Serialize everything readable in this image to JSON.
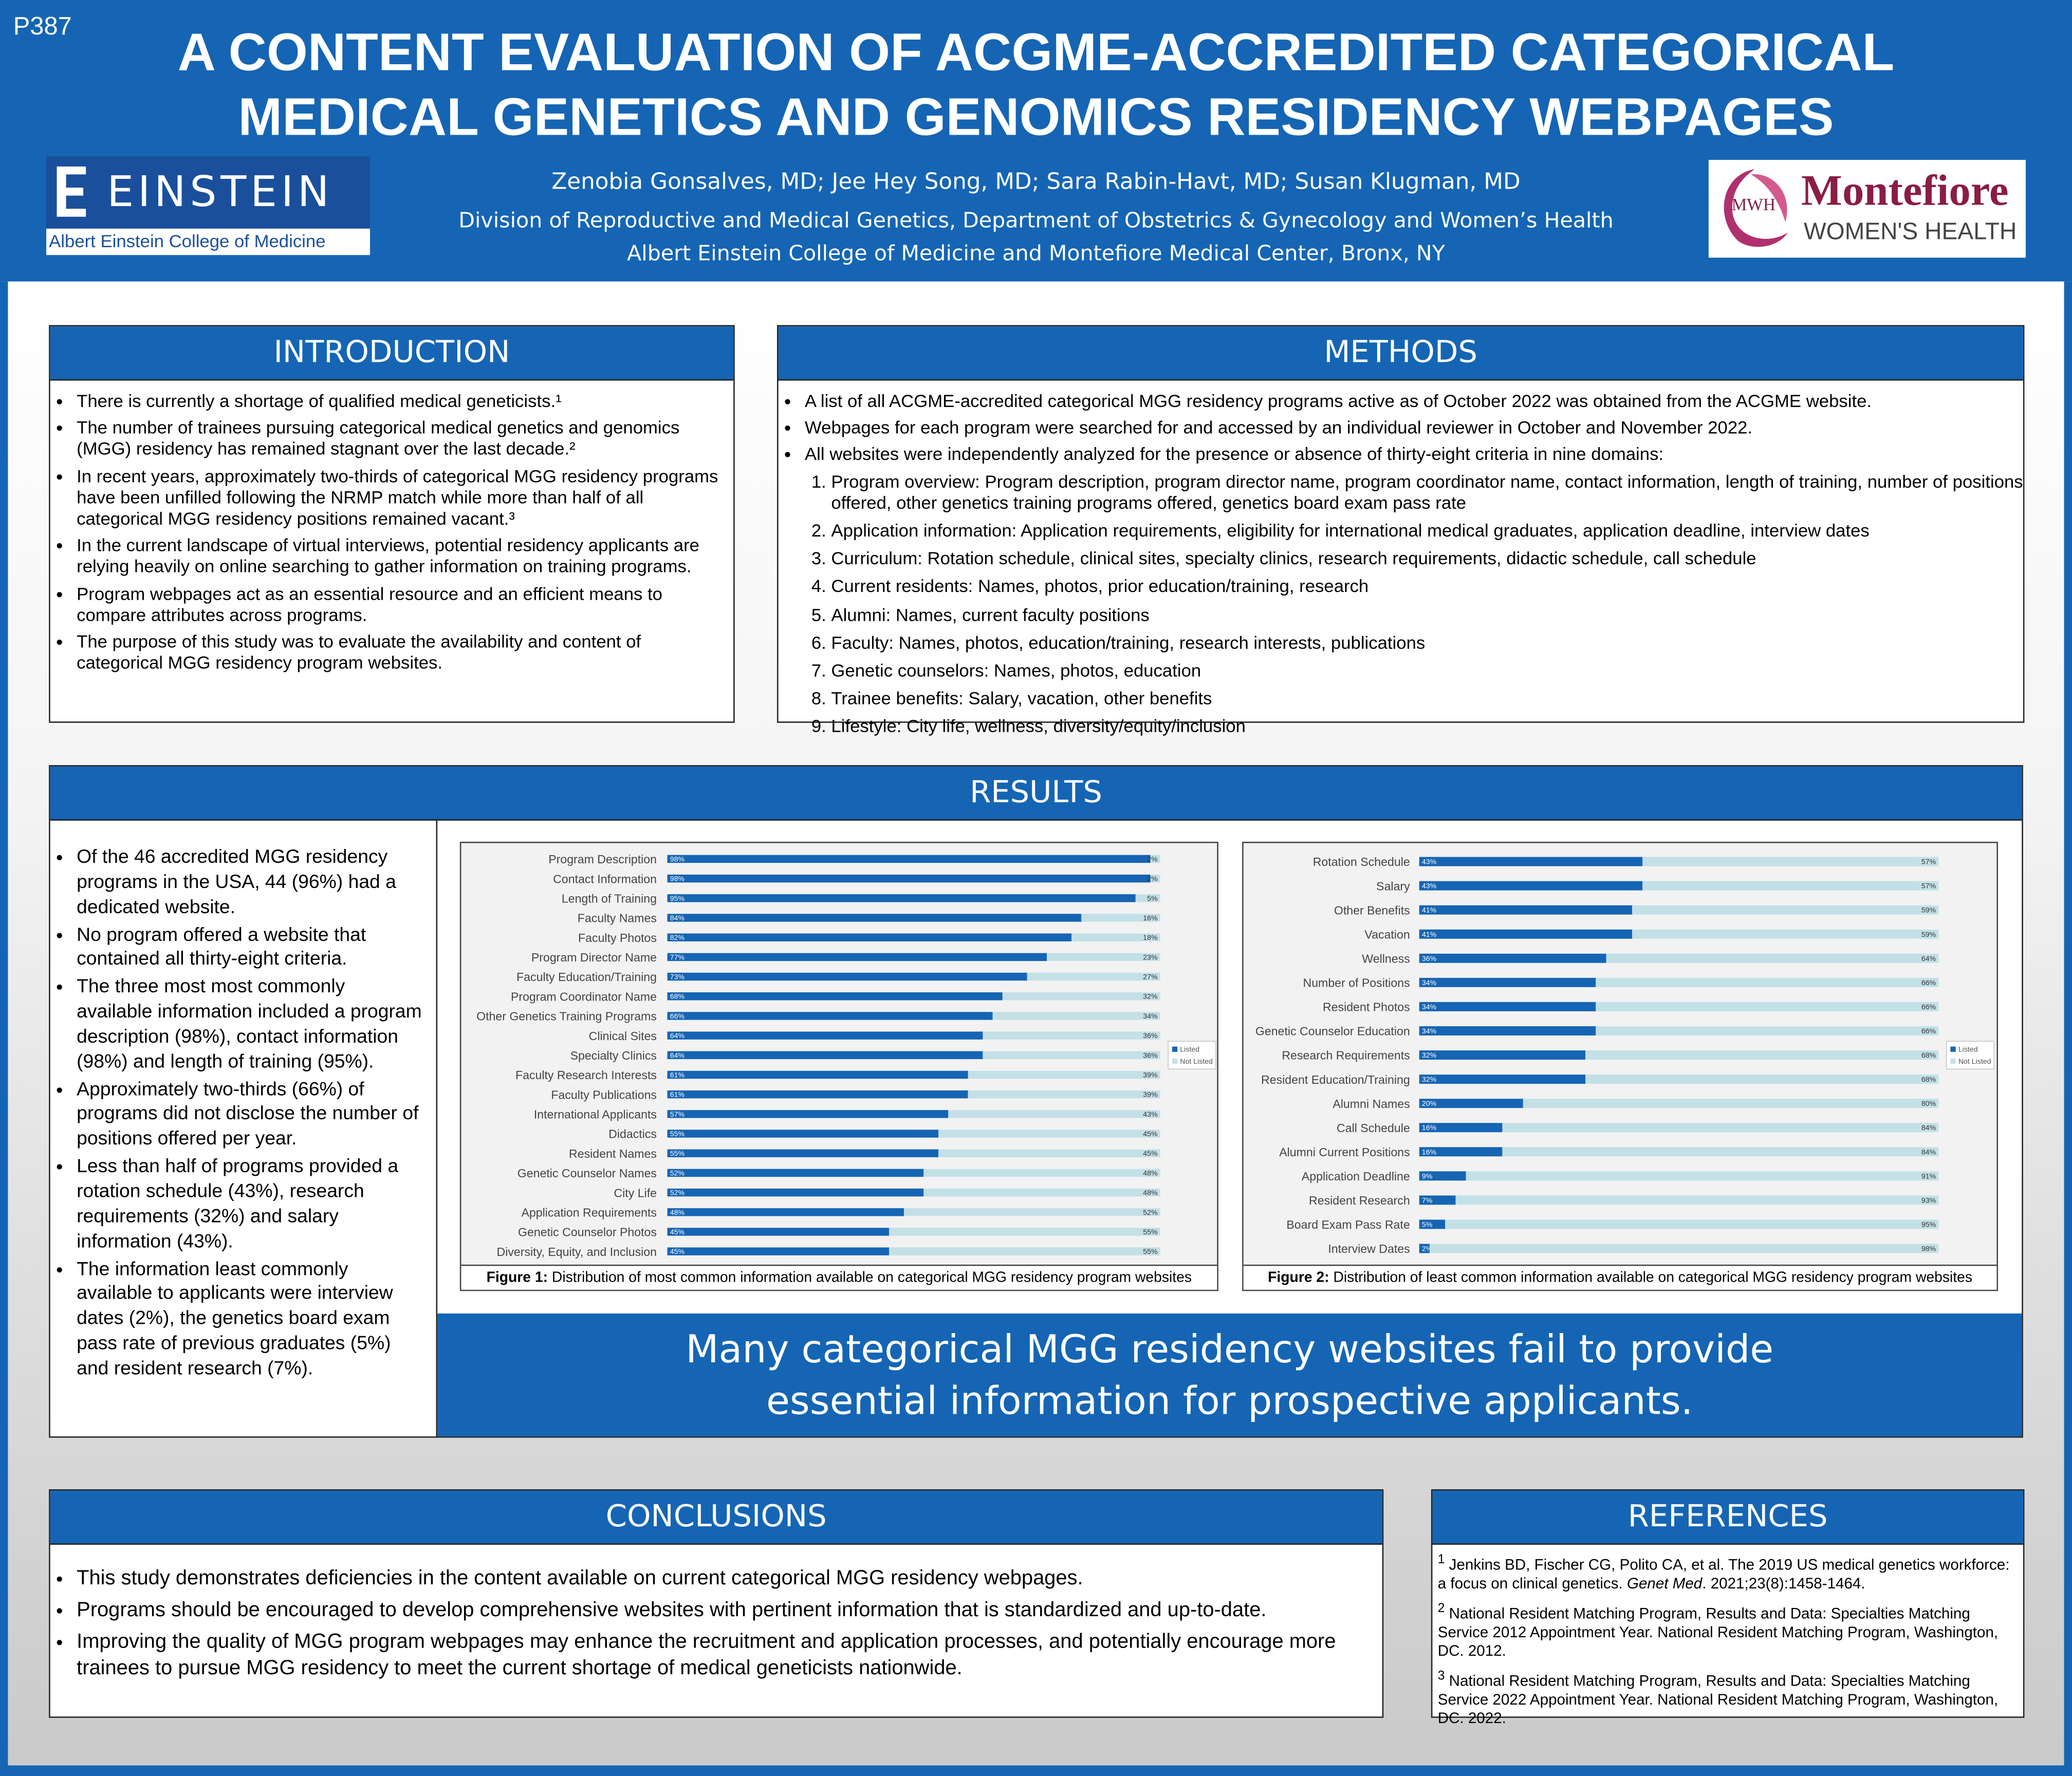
{
  "header": {
    "code": "P387",
    "title_lines": [
      "A CONTENT EVALUATION OF ACGME-ACCREDITED CATEGORICAL",
      "MEDICAL GENETICS AND GENOMICS RESIDENCY WEBPAGES"
    ],
    "authors": "Zenobia Gonsalves, MD;  Jee Hey Song, MD; Sara Rabin-Havt, MD; Susan Klugman, MD",
    "affiliation_lines": [
      "Division of Reproductive and Medical Genetics, Department of Obstetrics & Gynecology and Women’s Health",
      "Albert Einstein College of Medicine and Montefiore Medical Center, Bronx, NY"
    ]
  },
  "logos": {
    "left": {
      "name": "EINSTEIN",
      "subtitle": "Albert Einstein College of Medicine"
    },
    "right": {
      "badge": "MWH",
      "name": "Montefiore",
      "subtitle": "WOMEN'S HEALTH"
    }
  },
  "introduction": {
    "heading": "INTRODUCTION",
    "items": [
      "There is currently a shortage of qualified medical geneticists.¹",
      "The number of trainees pursuing categorical medical genetics and genomics (MGG) residency has remained stagnant over the last decade.²",
      "In recent years, approximately two-thirds of categorical MGG residency programs have been unfilled following the NRMP match while more than half of all categorical MGG residency positions remained vacant.³",
      "In the current landscape of virtual interviews, potential residency applicants are relying heavily on online searching to gather information on training programs.",
      "Program webpages act as an essential resource and an efficient means to compare attributes across programs.",
      "The purpose of this study was to evaluate the availability and content of categorical MGG residency program websites."
    ]
  },
  "methods": {
    "heading": "METHODS",
    "items": [
      "A list of all ACGME-accredited categorical MGG residency programs active as of October 2022 was obtained from the ACGME website.",
      "Webpages for each program were searched for and accessed by an individual reviewer in October and November 2022.",
      "All websites were independently analyzed for the presence or absence of thirty-eight criteria in nine domains:"
    ],
    "domains": [
      "Program overview: Program description, program director name, program coordinator name, contact information, length of training, number of positions offered, other genetics training programs offered, genetics board exam pass rate",
      "Application information: Application requirements, eligibility for international medical graduates, application deadline, interview dates",
      "Curriculum: Rotation schedule, clinical sites, specialty clinics, research requirements, didactic schedule, call schedule",
      "Current residents: Names, photos, prior education/training, research",
      "Alumni: Names, current faculty positions",
      "Faculty: Names, photos, education/training, research interests, publications",
      "Genetic counselors: Names, photos, education",
      "Trainee benefits: Salary, vacation, other benefits",
      "Lifestyle: City life, wellness, diversity/equity/inclusion"
    ]
  },
  "results": {
    "heading": "RESULTS",
    "items": [
      "Of the 46 accredited MGG residency programs in the USA, 44 (96%) had a dedicated website.",
      "No program offered a website that contained all thirty-eight criteria.",
      "The three most most commonly available information included a program description (98%), contact information (98%) and length of training (95%).",
      "Approximately two-thirds (66%) of programs did not disclose the number of positions offered per year.",
      "Less than half of programs provided a rotation schedule (43%), research requirements (32%) and salary information (43%).",
      "The information least commonly available to applicants were interview dates (2%), the genetics board exam pass rate of previous graduates (5%) and resident research (7%)."
    ],
    "key_message_lines": [
      "Many categorical MGG residency websites fail to provide",
      "essential information for prospective applicants."
    ]
  },
  "chart_data": [
    {
      "type": "bar",
      "orientation": "horizontal",
      "stacked": true,
      "caption_label": "Figure 1:",
      "caption": "Distribution of most common information available on categorical MGG residency program websites",
      "xlim": [
        0,
        100
      ],
      "categories": [
        "Program Description",
        "Contact Information",
        "Length of Training",
        "Faculty Names",
        "Faculty Photos",
        "Program Director Name",
        "Faculty Education/Training",
        "Program Coordinator Name",
        "Other Genetics Training Programs",
        "Clinical Sites",
        "Specialty Clinics",
        "Faculty Research Interests",
        "Faculty Publications",
        "International Applicants",
        "Didactics",
        "Resident Names",
        "Genetic Counselor Names",
        "City Life",
        "Application Requirements",
        "Genetic Counselor Photos",
        "Diversity, Equity, and Inclusion"
      ],
      "series": [
        {
          "name": "Listed",
          "color": "#1565b4",
          "values": [
            98,
            98,
            95,
            84,
            82,
            77,
            73,
            68,
            66,
            64,
            64,
            61,
            61,
            57,
            55,
            55,
            52,
            52,
            48,
            45,
            45
          ],
          "value_labels": [
            "98%",
            "98%",
            "95%",
            "84%",
            "82%",
            "77%",
            "73%",
            "68%",
            "66%",
            "64%",
            "64%",
            "61%",
            "61%",
            "57%",
            "55%",
            "55%",
            "52%",
            "52%",
            "48%",
            "45%",
            "45%"
          ]
        },
        {
          "name": "Not Listed",
          "color": "#c3e0e7",
          "values": [
            2,
            2,
            5,
            16,
            18,
            23,
            27,
            32,
            34,
            36,
            36,
            39,
            39,
            43,
            45,
            45,
            48,
            48,
            52,
            55,
            55
          ],
          "value_labels": [
            "2%",
            "2%",
            "5%",
            "16%",
            "18%",
            "23%",
            "27%",
            "32%",
            "34%",
            "36%",
            "36%",
            "39%",
            "39%",
            "43%",
            "45%",
            "45%",
            "48%",
            "48%",
            "52%",
            "55%",
            "55%"
          ]
        }
      ],
      "legend": "right"
    },
    {
      "type": "bar",
      "orientation": "horizontal",
      "stacked": true,
      "caption_label": "Figure 2:",
      "caption": "Distribution of least common information available on categorical MGG residency program websites",
      "xlim": [
        0,
        100
      ],
      "categories": [
        "Rotation Schedule",
        "Salary",
        "Other Benefits",
        "Vacation",
        "Wellness",
        "Number of Positions",
        "Resident Photos",
        "Genetic Counselor Education",
        "Research Requirements",
        "Resident Education/Training",
        "Alumni Names",
        "Call Schedule",
        "Alumni Current Positions",
        "Application Deadline",
        "Resident Research",
        "Board Exam Pass Rate",
        "Interview Dates"
      ],
      "series": [
        {
          "name": "Listed",
          "color": "#1565b4",
          "values": [
            43,
            43,
            41,
            41,
            36,
            34,
            34,
            34,
            32,
            32,
            20,
            16,
            16,
            9,
            7,
            5,
            2
          ],
          "value_labels": [
            "43%",
            "43%",
            "41%",
            "41%",
            "36%",
            "34%",
            "34%",
            "34%",
            "32%",
            "32%",
            "20%",
            "16%",
            "16%",
            "9%",
            "7%",
            "5%",
            "2%"
          ]
        },
        {
          "name": "Not Listed",
          "color": "#c3e0e7",
          "values": [
            57,
            57,
            59,
            59,
            64,
            66,
            66,
            66,
            68,
            68,
            80,
            84,
            84,
            91,
            93,
            95,
            98
          ],
          "value_labels": [
            "57%",
            "57%",
            "59%",
            "59%",
            "64%",
            "66%",
            "66%",
            "66%",
            "68%",
            "68%",
            "80%",
            "84%",
            "84%",
            "91%",
            "93%",
            "95%",
            "98%"
          ]
        }
      ],
      "legend": "right"
    }
  ],
  "conclusions": {
    "heading": "CONCLUSIONS",
    "items": [
      "This study demonstrates deficiencies in the content available on current categorical MGG residency webpages.",
      "Programs should be encouraged to develop comprehensive websites with pertinent information that is standardized and up-to-date.",
      "Improving the quality of MGG program webpages may enhance the recruitment and application processes, and potentially encourage more trainees to pursue MGG residency to meet the current shortage of medical geneticists nationwide."
    ]
  },
  "references": {
    "heading": "REFERENCES",
    "items": [
      {
        "marker": "1",
        "text": "Jenkins BD, Fischer CG, Polito CA, et al. The 2019 US medical genetics workforce: a focus on clinical genetics. ",
        "journal": "Genet Med",
        "rest": ". 2021;23(8):1458-1464."
      },
      {
        "marker": "2",
        "text": "National Resident Matching Program, Results and Data: Specialties Matching Service 2012 Appointment Year. National Resident Matching Program, Washington, DC. 2012."
      },
      {
        "marker": "3",
        "text": "National Resident Matching Program, Results and Data: Specialties Matching Service 2022 Appointment Year. National Resident Matching Program, Washington, DC. 2022."
      }
    ]
  }
}
